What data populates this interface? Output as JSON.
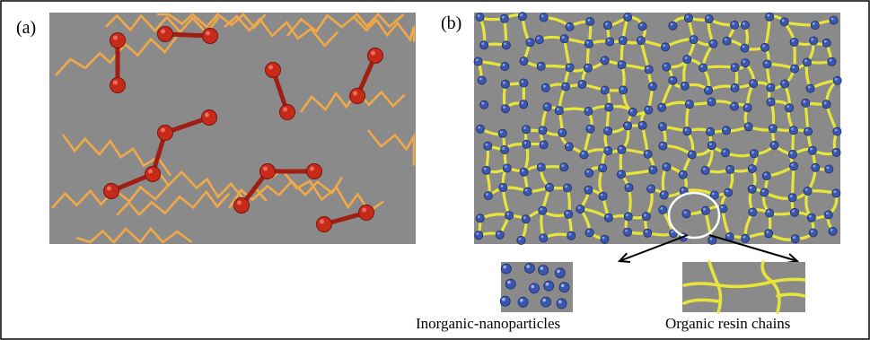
{
  "panels": {
    "a": {
      "label": "(a)"
    },
    "b": {
      "label": "(b)"
    }
  },
  "insets": {
    "left_caption": "Inorganic-nanoparticles",
    "right_caption": "Organic resin chains"
  },
  "colors": {
    "background_gray": "#8a8a8a",
    "panel_a_chain": "#f0a848",
    "panel_a_bead": "#c82a1a",
    "panel_a_bond": "#a01e14",
    "panel_b_chain": "#e8e53a",
    "panel_b_particle": "#3a57b0",
    "highlight_circle": "#ffffff",
    "arrow": "#000000",
    "frame": "#000000"
  },
  "icons": {
    "highlight": "selection-circle",
    "pointer": "zoom-arrow"
  }
}
